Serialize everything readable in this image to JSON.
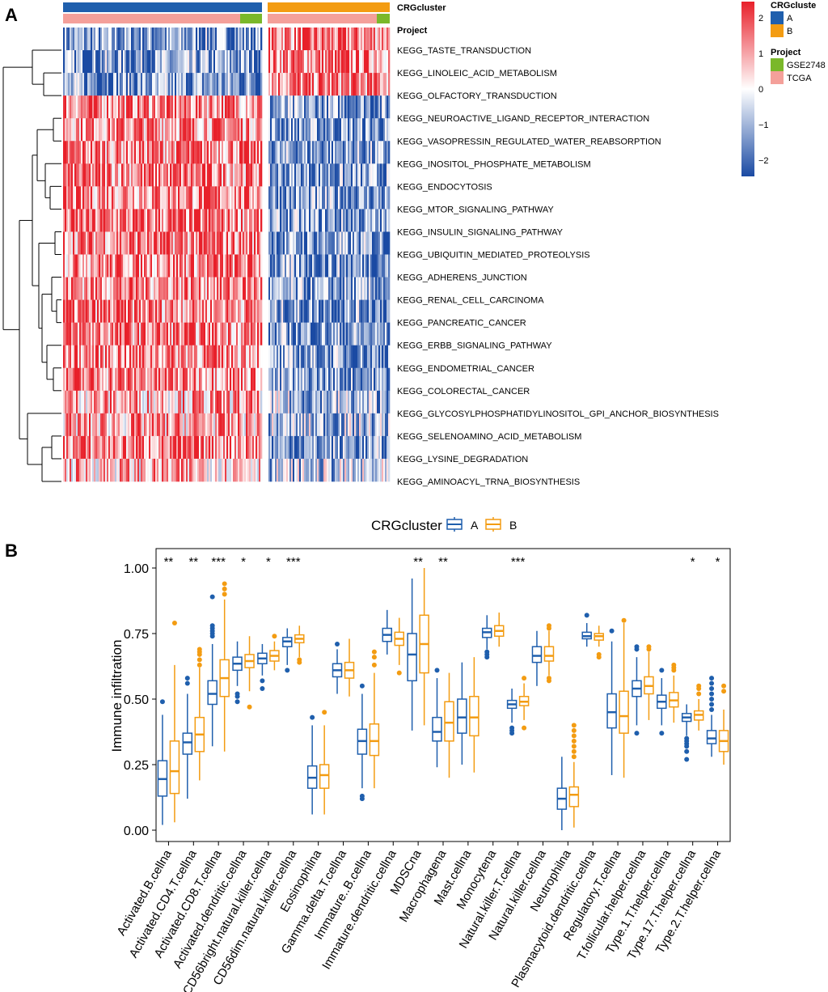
{
  "panels": {
    "a": "A",
    "b": "B"
  },
  "colors": {
    "clusterA": "#1f5fad",
    "clusterB": "#f39c12",
    "gse": "#7ab82a",
    "tcga": "#f4a09a",
    "heat_low": "#1a4aa3",
    "heat_mid": "#ffffff",
    "heat_high": "#e8202a",
    "sig": "#000000"
  },
  "heatmap": {
    "annotation_rows": [
      "CRGcluster",
      "Project"
    ],
    "pathways": [
      "KEGG_TASTE_TRANSDUCTION",
      "KEGG_LINOLEIC_ACID_METABOLISM",
      "KEGG_OLFACTORY_TRANSDUCTION",
      "KEGG_NEUROACTIVE_LIGAND_RECEPTOR_INTERACTION",
      "KEGG_VASOPRESSIN_REGULATED_WATER_REABSORPTION",
      "KEGG_INOSITOL_PHOSPHATE_METABOLISM",
      "KEGG_ENDOCYTOSIS",
      "KEGG_MTOR_SIGNALING_PATHWAY",
      "KEGG_INSULIN_SIGNALING_PATHWAY",
      "KEGG_UBIQUITIN_MEDIATED_PROTEOLYSIS",
      "KEGG_ADHERENS_JUNCTION",
      "KEGG_RENAL_CELL_CARCINOMA",
      "KEGG_PANCREATIC_CANCER",
      "KEGG_ERBB_SIGNALING_PATHWAY",
      "KEGG_ENDOMETRIAL_CANCER",
      "KEGG_COLORECTAL_CANCER",
      "KEGG_GLYCOSYLPHOSPHATIDYLINOSITOL_GPI_ANCHOR_BIOSYNTHESIS",
      "KEGG_SELENOAMINO_ACID_METABOLISM",
      "KEGG_LYSINE_DEGRADATION",
      "KEGG_AMINOACYL_TRNA_BIOSYNTHESIS"
    ],
    "row_bias_A": [
      -1,
      -1,
      -1,
      1,
      1,
      1,
      1,
      1,
      1,
      1,
      1,
      1,
      1,
      1,
      1,
      1,
      0.7,
      0.7,
      1,
      0.6
    ],
    "legend": {
      "cluster_title": "CRGcluste",
      "cluster_items": [
        "A",
        "B"
      ],
      "project_title": "Project",
      "project_items": [
        "GSE2748",
        "TCGA"
      ],
      "scale_ticks": [
        "2",
        "1",
        "0",
        "−1",
        "−2"
      ]
    }
  },
  "chart_data": {
    "type": "box",
    "legend_title": "CRGcluster",
    "series": [
      "A",
      "B"
    ],
    "ylabel": "Immune infiltration",
    "ylim": [
      0,
      1.05
    ],
    "yticks": [
      "0.00",
      "0.25",
      "0.50",
      "0.75",
      "1.00"
    ],
    "categories": [
      {
        "name": "Activated.B.cellna",
        "sig": "**",
        "A": [
          0.02,
          0.13,
          0.195,
          0.265,
          0.44
        ],
        "B": [
          0.03,
          0.14,
          0.225,
          0.34,
          0.63
        ],
        "outA": [
          0.49
        ],
        "outB": [
          0.79
        ]
      },
      {
        "name": "Activated.CD4.T.cellna",
        "sig": "**",
        "A": [
          0.12,
          0.29,
          0.335,
          0.37,
          0.52
        ],
        "B": [
          0.19,
          0.3,
          0.365,
          0.43,
          0.62
        ],
        "outA": [
          0.56,
          0.58
        ],
        "outB": [
          0.63,
          0.65,
          0.67,
          0.68,
          0.69
        ]
      },
      {
        "name": "Activated.CD8.T.cellna",
        "sig": "***",
        "A": [
          0.32,
          0.48,
          0.52,
          0.57,
          0.71
        ],
        "B": [
          0.3,
          0.51,
          0.58,
          0.65,
          0.88
        ],
        "outA": [
          0.74,
          0.75,
          0.76,
          0.77,
          0.78,
          0.89
        ],
        "outB": [
          0.9,
          0.92,
          0.94
        ]
      },
      {
        "name": "Activated.dendritic.cellna",
        "sig": "*",
        "A": [
          0.55,
          0.61,
          0.635,
          0.66,
          0.72
        ],
        "B": [
          0.53,
          0.62,
          0.645,
          0.67,
          0.74
        ],
        "outA": [
          0.49,
          0.51,
          0.52
        ],
        "outB": [
          0.47
        ]
      },
      {
        "name": "CD56bright.natural.killer.cellna",
        "sig": "*",
        "A": [
          0.59,
          0.635,
          0.655,
          0.675,
          0.71
        ],
        "B": [
          0.61,
          0.645,
          0.665,
          0.685,
          0.72
        ],
        "outA": [
          0.54,
          0.57
        ],
        "outB": [
          0.74
        ]
      },
      {
        "name": "CD56dim.natural.killer.cellna",
        "sig": "***",
        "A": [
          0.63,
          0.7,
          0.72,
          0.735,
          0.77
        ],
        "B": [
          0.66,
          0.715,
          0.73,
          0.745,
          0.78
        ],
        "outA": [
          0.61
        ],
        "outB": [
          0.64,
          0.65
        ]
      },
      {
        "name": "Eosinophilna",
        "sig": "",
        "A": [
          0.06,
          0.16,
          0.2,
          0.245,
          0.4
        ],
        "B": [
          0.06,
          0.16,
          0.21,
          0.25,
          0.4
        ],
        "outA": [
          0.43
        ],
        "outB": [
          0.45
        ]
      },
      {
        "name": "Gamma.delta.T.cellna",
        "sig": "",
        "A": [
          0.52,
          0.585,
          0.61,
          0.635,
          0.69
        ],
        "B": [
          0.51,
          0.58,
          0.61,
          0.64,
          0.73
        ],
        "outA": [
          0.71
        ],
        "outB": []
      },
      {
        "name": "Immature..B.cellna",
        "sig": "",
        "A": [
          0.16,
          0.29,
          0.34,
          0.385,
          0.52
        ],
        "B": [
          0.16,
          0.285,
          0.34,
          0.405,
          0.6
        ],
        "outA": [
          0.12,
          0.13,
          0.55
        ],
        "outB": [
          0.63,
          0.66,
          0.68
        ]
      },
      {
        "name": "Immature.dendritic.cellna",
        "sig": "",
        "A": [
          0.67,
          0.72,
          0.745,
          0.77,
          0.84
        ],
        "B": [
          0.63,
          0.705,
          0.73,
          0.755,
          0.81
        ],
        "outA": [],
        "outB": [
          0.6
        ]
      },
      {
        "name": "MDSCna",
        "sig": "**",
        "A": [
          0.38,
          0.57,
          0.67,
          0.75,
          0.96
        ],
        "B": [
          0.4,
          0.6,
          0.71,
          0.82,
          1.0
        ],
        "outA": [],
        "outB": []
      },
      {
        "name": "Macrophagena",
        "sig": "**",
        "A": [
          0.24,
          0.34,
          0.375,
          0.43,
          0.58
        ],
        "B": [
          0.2,
          0.34,
          0.41,
          0.49,
          0.6
        ],
        "outA": [
          0.61
        ],
        "outB": []
      },
      {
        "name": "Mast.cellna",
        "sig": "",
        "A": [
          0.25,
          0.37,
          0.43,
          0.5,
          0.64
        ],
        "B": [
          0.22,
          0.36,
          0.43,
          0.51,
          0.66
        ],
        "outA": [],
        "outB": []
      },
      {
        "name": "Monocytena",
        "sig": "",
        "A": [
          0.69,
          0.735,
          0.755,
          0.77,
          0.82
        ],
        "B": [
          0.7,
          0.74,
          0.76,
          0.78,
          0.83
        ],
        "outA": [
          0.66,
          0.67,
          0.68
        ],
        "outB": []
      },
      {
        "name": "Natural.killer.T.cellna",
        "sig": "***",
        "A": [
          0.41,
          0.465,
          0.48,
          0.495,
          0.54
        ],
        "B": [
          0.42,
          0.475,
          0.49,
          0.51,
          0.56
        ],
        "outA": [
          0.37,
          0.38,
          0.39
        ],
        "outB": [
          0.39,
          0.58
        ]
      },
      {
        "name": "Natural.killer.cellna",
        "sig": "",
        "A": [
          0.55,
          0.64,
          0.665,
          0.7,
          0.76
        ],
        "B": [
          0.59,
          0.645,
          0.665,
          0.7,
          0.76
        ],
        "outA": [],
        "outB": [
          0.57,
          0.58,
          0.77,
          0.78
        ]
      },
      {
        "name": "Neutrophilna",
        "sig": "",
        "A": [
          0.0,
          0.08,
          0.12,
          0.16,
          0.28
        ],
        "B": [
          0.01,
          0.09,
          0.135,
          0.165,
          0.26
        ],
        "outA": [],
        "outB": [
          0.28,
          0.3,
          0.32,
          0.34,
          0.36,
          0.38,
          0.4
        ]
      },
      {
        "name": "Plasmacytoid.dendritic.cellna",
        "sig": "",
        "A": [
          0.7,
          0.73,
          0.74,
          0.755,
          0.79
        ],
        "B": [
          0.7,
          0.725,
          0.74,
          0.75,
          0.78
        ],
        "outA": [
          0.82
        ],
        "outB": [
          0.66,
          0.67
        ]
      },
      {
        "name": "Regulatory.T.cellna",
        "sig": "",
        "A": [
          0.21,
          0.39,
          0.45,
          0.52,
          0.72
        ],
        "B": [
          0.2,
          0.37,
          0.435,
          0.53,
          0.79
        ],
        "outA": [
          0.76
        ],
        "outB": [
          0.8
        ]
      },
      {
        "name": "T.follicular.helper.cellna",
        "sig": "",
        "A": [
          0.4,
          0.51,
          0.54,
          0.57,
          0.66
        ],
        "B": [
          0.42,
          0.52,
          0.55,
          0.585,
          0.68
        ],
        "outA": [
          0.37,
          0.69,
          0.7
        ],
        "outB": [
          0.69,
          0.7
        ]
      },
      {
        "name": "Type.1.T.helper.cellna",
        "sig": "",
        "A": [
          0.4,
          0.465,
          0.49,
          0.515,
          0.58
        ],
        "B": [
          0.41,
          0.47,
          0.495,
          0.525,
          0.59
        ],
        "outA": [
          0.37,
          0.61
        ],
        "outB": [
          0.61,
          0.62,
          0.63
        ]
      },
      {
        "name": "Type.17.T.helper.cellna",
        "sig": "*",
        "A": [
          0.36,
          0.415,
          0.43,
          0.445,
          0.48
        ],
        "B": [
          0.38,
          0.42,
          0.44,
          0.455,
          0.5
        ],
        "outA": [
          0.27,
          0.3,
          0.32,
          0.33,
          0.34,
          0.35
        ],
        "outB": [
          0.52,
          0.54,
          0.55
        ]
      },
      {
        "name": "Type.2.T.helper.cellna",
        "sig": "*",
        "A": [
          0.28,
          0.33,
          0.35,
          0.38,
          0.44
        ],
        "B": [
          0.25,
          0.3,
          0.34,
          0.38,
          0.46
        ],
        "outA": [
          0.46,
          0.48,
          0.5,
          0.52,
          0.54,
          0.56,
          0.58
        ],
        "outB": [
          0.53,
          0.55
        ]
      }
    ]
  }
}
